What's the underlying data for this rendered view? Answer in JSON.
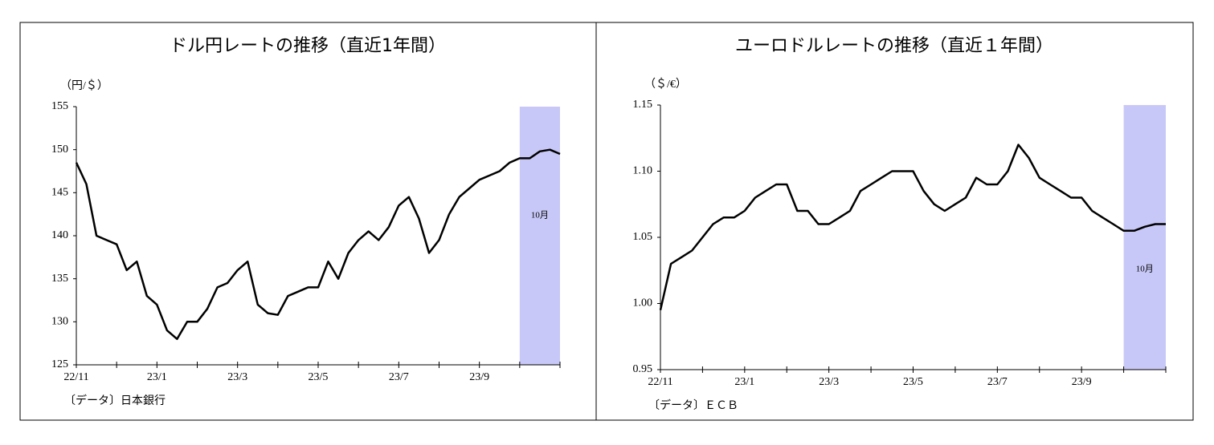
{
  "chart_data": [
    {
      "type": "line",
      "title": "ドル円レートの推移（直近1年間）",
      "y_label": "（円/＄）",
      "source": "〔データ〕日本銀行",
      "annotation": "10月",
      "categories": [
        "22/11",
        null,
        null,
        null,
        null,
        null,
        null,
        null,
        "23/1",
        null,
        null,
        null,
        null,
        null,
        null,
        null,
        "23/3",
        null,
        null,
        null,
        null,
        null,
        null,
        null,
        "23/5",
        null,
        null,
        null,
        null,
        null,
        null,
        null,
        "23/7",
        null,
        null,
        null,
        null,
        null,
        null,
        null,
        "23/9",
        null,
        null,
        null,
        null,
        null,
        null,
        null,
        null
      ],
      "values": [
        148.5,
        146,
        140,
        139.5,
        139,
        136,
        137,
        133,
        132,
        129,
        128,
        130,
        130,
        131.5,
        134,
        134.5,
        136,
        137,
        132,
        131,
        130.8,
        133,
        133.5,
        134,
        134,
        137,
        135,
        138,
        139.5,
        140.5,
        139.5,
        141,
        143.5,
        144.5,
        142,
        138,
        139.5,
        142.5,
        144.5,
        145.5,
        146.5,
        147,
        147.5,
        148.5,
        149,
        149,
        149.8,
        150,
        149.5
      ],
      "color": "#000000",
      "highlight_color": "#c8c8f8",
      "ylim": [
        125,
        155
      ],
      "yticks": [
        125,
        130,
        135,
        140,
        145,
        150,
        155
      ]
    },
    {
      "type": "line",
      "title": "ユーロドルレートの推移（直近１年間）",
      "y_label": "（＄/€）",
      "source": "〔データ〕ＥＣＢ",
      "annotation": "10月",
      "categories": [
        "22/11",
        null,
        null,
        null,
        null,
        null,
        null,
        null,
        "23/1",
        null,
        null,
        null,
        null,
        null,
        null,
        null,
        "23/3",
        null,
        null,
        null,
        null,
        null,
        null,
        null,
        "23/5",
        null,
        null,
        null,
        null,
        null,
        null,
        null,
        "23/7",
        null,
        null,
        null,
        null,
        null,
        null,
        null,
        "23/9",
        null,
        null,
        null,
        null,
        null,
        null,
        null,
        null
      ],
      "values": [
        0.995,
        1.03,
        1.035,
        1.04,
        1.05,
        1.06,
        1.065,
        1.065,
        1.07,
        1.08,
        1.085,
        1.09,
        1.09,
        1.07,
        1.07,
        1.06,
        1.06,
        1.065,
        1.07,
        1.085,
        1.09,
        1.095,
        1.1,
        1.1,
        1.1,
        1.085,
        1.075,
        1.07,
        1.075,
        1.08,
        1.095,
        1.09,
        1.09,
        1.1,
        1.12,
        1.11,
        1.095,
        1.09,
        1.085,
        1.08,
        1.08,
        1.07,
        1.065,
        1.06,
        1.055,
        1.055,
        1.058,
        1.06,
        1.06
      ],
      "color": "#000000",
      "highlight_color": "#c8c8f8",
      "ylim": [
        0.95,
        1.15
      ],
      "yticks": [
        0.95,
        {
          "value": 1.0,
          "label": "1.00"
        },
        1.05,
        {
          "value": 1.1,
          "label": "1.10"
        },
        1.15
      ]
    }
  ]
}
